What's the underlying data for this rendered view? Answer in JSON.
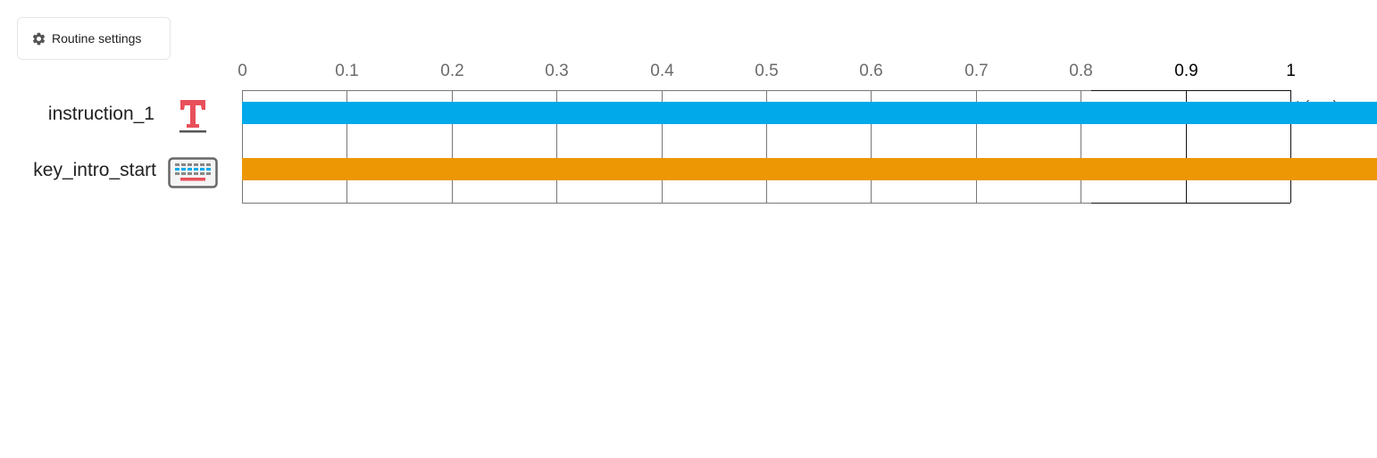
{
  "toolbar": {
    "settings_label": "Routine settings",
    "settings_icon": "gear-icon"
  },
  "timeline": {
    "unit_label": "t (sec)",
    "ticks": [
      "0",
      "0.1",
      "0.2",
      "0.3",
      "0.4",
      "0.5",
      "0.6",
      "0.7",
      "0.8",
      "0.9",
      "1"
    ],
    "max_time": 1
  },
  "components": [
    {
      "name": "instruction_1",
      "icon": "text-component-icon",
      "color": "#02a9ea",
      "start": 0,
      "stop": null
    },
    {
      "name": "key_intro_start",
      "icon": "keyboard-component-icon",
      "color": "#ec9703",
      "start": 0,
      "stop": null
    }
  ]
}
